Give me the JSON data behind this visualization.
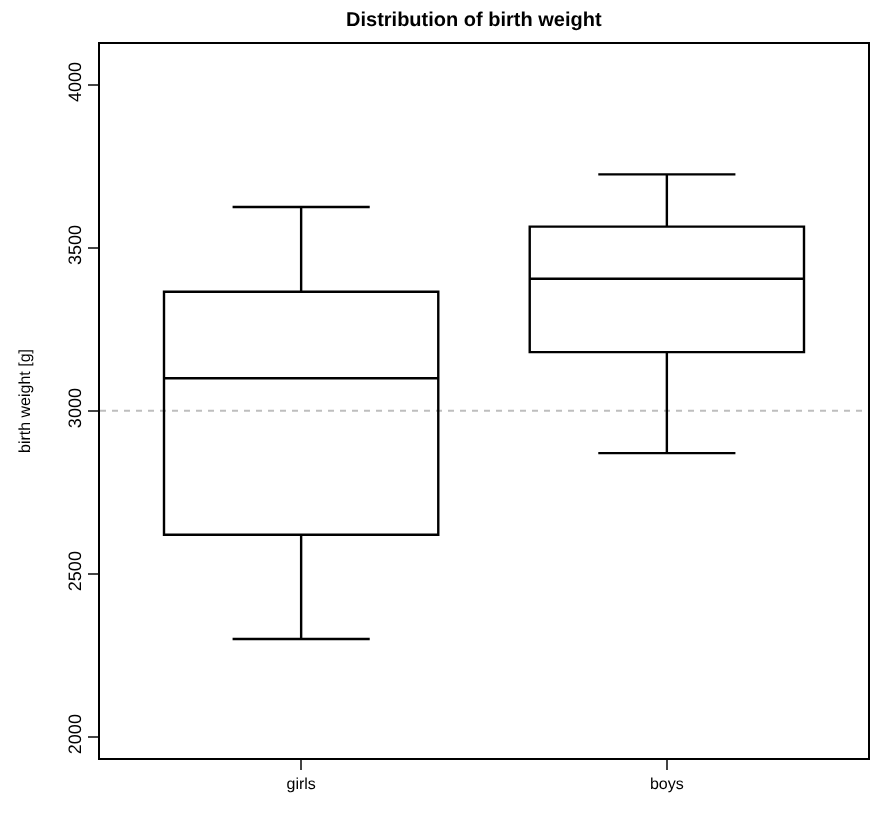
{
  "chart_data": {
    "type": "box",
    "title": "Distribution of birth weight",
    "ylabel": "birth weight [g]",
    "categories": [
      "girls",
      "boys"
    ],
    "boxes": [
      {
        "low": 2300,
        "q1": 2620,
        "median": 3100,
        "q3": 3365,
        "high": 3625
      },
      {
        "low": 2870,
        "q1": 3180,
        "median": 3405,
        "q3": 3565,
        "high": 3725
      }
    ],
    "ylim": [
      1935,
      4125
    ],
    "yticks": [
      2000,
      2500,
      3000,
      3500,
      4000
    ],
    "grid": false,
    "ref_lines": [
      {
        "axis": "y",
        "value": 3000,
        "color": "#bebebe",
        "line_style": "dotted"
      }
    ]
  }
}
